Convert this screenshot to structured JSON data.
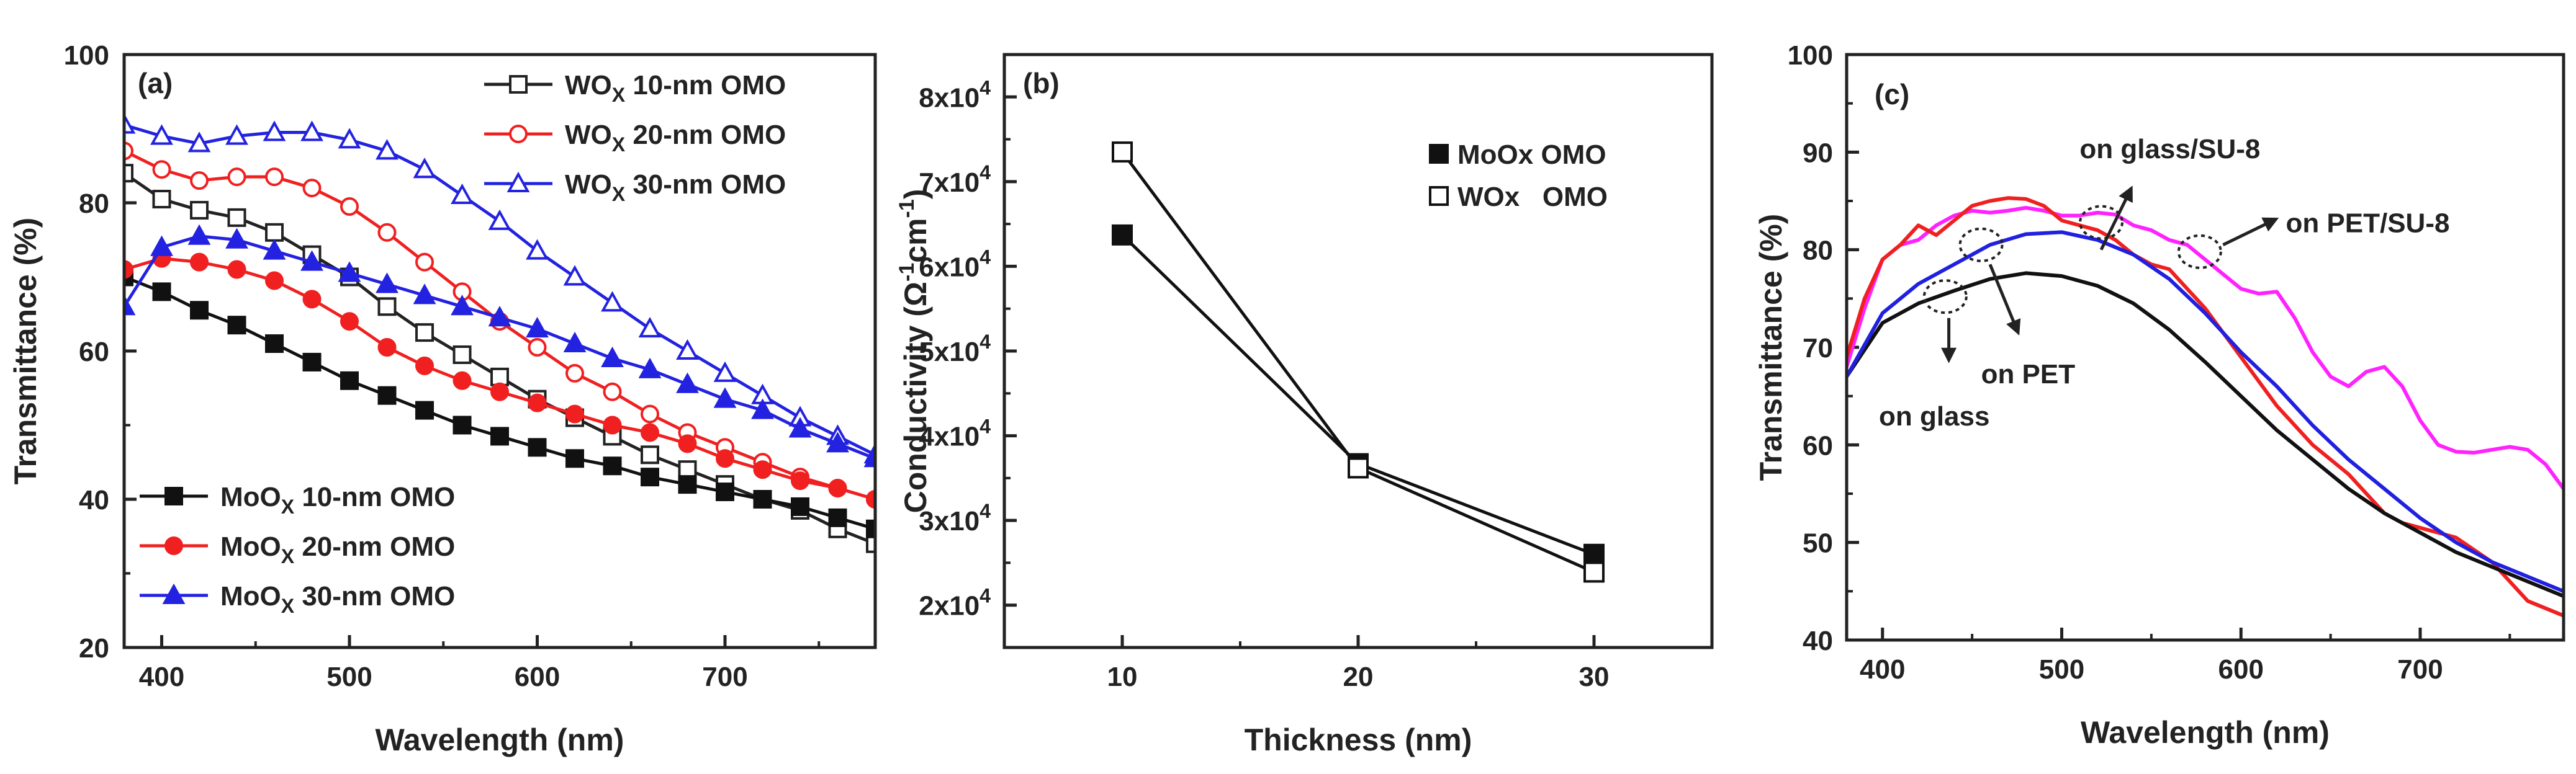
{
  "chart_data": [
    {
      "panel": "(a)",
      "type": "line",
      "xlabel": "Wavelength (nm)",
      "ylabel": "Transmittance (%)",
      "xlim": [
        380,
        780
      ],
      "ylim": [
        20,
        100
      ],
      "xticks": [
        "400",
        "500",
        "600",
        "700"
      ],
      "yticks": [
        "20",
        "40",
        "60",
        "80",
        "100"
      ],
      "legend_top": "top-right",
      "legend_bottom": "bottom-left",
      "series": [
        {
          "name": "WOx 10-nm OMO",
          "label_main": "WO",
          "label_sub": "X",
          "label_rest": " 10-nm OMO",
          "color": "#222222",
          "marker": "square",
          "filled": false,
          "legend": "top",
          "x": [
            380,
            400,
            420,
            440,
            460,
            480,
            500,
            520,
            540,
            560,
            580,
            600,
            620,
            640,
            660,
            680,
            700,
            720,
            740,
            760,
            780
          ],
          "y": [
            84,
            80.5,
            79,
            78,
            76,
            73,
            70,
            66,
            62.5,
            59.5,
            56.5,
            53.5,
            51,
            48.5,
            46,
            44,
            42,
            40,
            38.5,
            36,
            34
          ]
        },
        {
          "name": "WOx 20-nm OMO",
          "label_main": "WO",
          "label_sub": "X",
          "label_rest": " 20-nm OMO",
          "color": "#f02020",
          "marker": "circle",
          "filled": false,
          "legend": "top",
          "x": [
            380,
            400,
            420,
            440,
            460,
            480,
            500,
            520,
            540,
            560,
            580,
            600,
            620,
            640,
            660,
            680,
            700,
            720,
            740,
            760,
            780
          ],
          "y": [
            87,
            84.5,
            83,
            83.5,
            83.5,
            82,
            79.5,
            76,
            72,
            68,
            64,
            60.5,
            57,
            54.5,
            51.5,
            49,
            47,
            45,
            43,
            41.5,
            40
          ]
        },
        {
          "name": "WOx 30-nm OMO",
          "label_main": "WO",
          "label_sub": "X",
          "label_rest": " 30-nm OMO",
          "color": "#2222e0",
          "marker": "triangle",
          "filled": false,
          "legend": "top",
          "x": [
            380,
            400,
            420,
            440,
            460,
            480,
            500,
            520,
            540,
            560,
            580,
            600,
            620,
            640,
            660,
            680,
            700,
            720,
            740,
            760,
            780
          ],
          "y": [
            90.5,
            89,
            88,
            89,
            89.5,
            89.5,
            88.5,
            87,
            84.5,
            81,
            77.5,
            73.5,
            70,
            66.5,
            63,
            60,
            57,
            54,
            51,
            48.5,
            46
          ]
        },
        {
          "name": "MoOx 10-nm OMO",
          "label_main": "MoO",
          "label_sub": "X",
          "label_rest": " 10-nm OMO",
          "color": "#111111",
          "marker": "square",
          "filled": true,
          "legend": "bottom",
          "x": [
            380,
            400,
            420,
            440,
            460,
            480,
            500,
            520,
            540,
            560,
            580,
            600,
            620,
            640,
            660,
            680,
            700,
            720,
            740,
            760,
            780
          ],
          "y": [
            70,
            68,
            65.5,
            63.5,
            61,
            58.5,
            56,
            54,
            52,
            50,
            48.5,
            47,
            45.5,
            44.5,
            43,
            42,
            41,
            40,
            39,
            37.5,
            36
          ]
        },
        {
          "name": "MoOx 20-nm OMO",
          "label_main": "MoO",
          "label_sub": "X",
          "label_rest": " 20-nm OMO",
          "color": "#f02020",
          "marker": "circle",
          "filled": true,
          "legend": "bottom",
          "x": [
            380,
            400,
            420,
            440,
            460,
            480,
            500,
            520,
            540,
            560,
            580,
            600,
            620,
            640,
            660,
            680,
            700,
            720,
            740,
            760,
            780
          ],
          "y": [
            71,
            72.5,
            72,
            71,
            69.5,
            67,
            64,
            60.5,
            58,
            56,
            54.5,
            53,
            51.5,
            50,
            49,
            47.5,
            45.5,
            44,
            42.5,
            41.5,
            40
          ]
        },
        {
          "name": "MoOx 30-nm OMO",
          "label_main": "MoO",
          "label_sub": "X",
          "label_rest": " 30-nm OMO",
          "color": "#2222e0",
          "marker": "triangle",
          "filled": true,
          "legend": "bottom",
          "x": [
            380,
            400,
            420,
            440,
            460,
            480,
            500,
            520,
            540,
            560,
            580,
            600,
            620,
            640,
            660,
            680,
            700,
            720,
            740,
            760,
            780
          ],
          "y": [
            66,
            74,
            75.5,
            75,
            73.5,
            72,
            70.5,
            69,
            67.5,
            66,
            64.5,
            63,
            61,
            59,
            57.5,
            55.5,
            53.5,
            52,
            49.5,
            47.5,
            45.5
          ]
        }
      ]
    },
    {
      "panel": "(b)",
      "type": "line",
      "xlabel": "Thickness (nm)",
      "ylabel_main": "Conductivity (",
      "ylabel_omega": "Ω",
      "ylabel_exp1": "-1",
      "ylabel_cm": "cm",
      "ylabel_exp2": "-1",
      "ylabel_close": ")",
      "xlim": [
        5,
        35
      ],
      "ylim": [
        15000,
        85000
      ],
      "xticks": [
        "10",
        "20",
        "30"
      ],
      "ytick_base": "x10",
      "ytick_exponent": "4",
      "yticks": [
        "2",
        "3",
        "4",
        "5",
        "6",
        "7",
        "8"
      ],
      "legend": "top-right",
      "series": [
        {
          "name": "MoOx OMO",
          "color": "#111111",
          "marker": "square",
          "filled": true,
          "x": [
            10,
            20,
            30
          ],
          "y": [
            63700,
            36700,
            26000
          ]
        },
        {
          "name": "WOx   OMO",
          "color": "#111111",
          "marker": "square",
          "filled": false,
          "x": [
            10,
            20,
            30
          ],
          "y": [
            73500,
            36200,
            23900
          ]
        }
      ]
    },
    {
      "panel": "(c)",
      "type": "line",
      "xlabel": "Wavelength (nm)",
      "ylabel": "Transmittance (%)",
      "xlim": [
        380,
        780
      ],
      "ylim": [
        40,
        100
      ],
      "xticks": [
        "400",
        "500",
        "600",
        "700"
      ],
      "yticks": [
        "40",
        "50",
        "60",
        "70",
        "80",
        "90",
        "100"
      ],
      "annotations": [
        "on glass/SU-8",
        "on PET/SU-8",
        "on PET",
        "on glass"
      ],
      "series": [
        {
          "name": "on glass",
          "color": "#111111",
          "x": [
            380,
            400,
            420,
            440,
            460,
            480,
            500,
            520,
            540,
            560,
            580,
            600,
            620,
            640,
            660,
            680,
            700,
            720,
            740,
            760,
            780
          ],
          "y": [
            67,
            72.5,
            74.5,
            75.8,
            77,
            77.6,
            77.3,
            76.3,
            74.5,
            71.8,
            68.5,
            65,
            61.5,
            58.5,
            55.5,
            53,
            51,
            49,
            47.5,
            46,
            44.5
          ]
        },
        {
          "name": "on glass/SU-8",
          "color": "#f02020",
          "x": [
            380,
            390,
            400,
            410,
            420,
            430,
            440,
            450,
            460,
            470,
            480,
            490,
            500,
            510,
            520,
            530,
            540,
            550,
            560,
            570,
            580,
            600,
            620,
            640,
            660,
            680,
            690,
            700,
            720,
            740,
            760,
            780
          ],
          "y": [
            69,
            75,
            79,
            80.5,
            82.5,
            81.5,
            83,
            84.5,
            85,
            85.3,
            85.2,
            84.5,
            83,
            82.5,
            82,
            81,
            79.5,
            78.5,
            78,
            76,
            74,
            69,
            64,
            60,
            57,
            53,
            52,
            51.5,
            50.5,
            48,
            44,
            42.5
          ]
        },
        {
          "name": "on PET",
          "color": "#2020e0",
          "x": [
            380,
            400,
            420,
            440,
            460,
            480,
            500,
            520,
            540,
            560,
            580,
            600,
            620,
            640,
            660,
            680,
            700,
            720,
            740,
            760,
            780
          ],
          "y": [
            67,
            73.5,
            76.5,
            78.5,
            80.5,
            81.6,
            81.8,
            81,
            79.5,
            77,
            73.5,
            69.5,
            66,
            62,
            58.5,
            55.5,
            52.5,
            50,
            48,
            46.5,
            45
          ]
        },
        {
          "name": "on PET/SU-8",
          "color": "#ff22ff",
          "x": [
            380,
            390,
            400,
            410,
            420,
            430,
            440,
            450,
            460,
            470,
            480,
            490,
            500,
            510,
            520,
            530,
            540,
            550,
            560,
            570,
            580,
            590,
            600,
            610,
            620,
            630,
            640,
            650,
            660,
            670,
            680,
            690,
            700,
            710,
            720,
            730,
            740,
            750,
            760,
            770,
            780
          ],
          "y": [
            68,
            74,
            79,
            80.5,
            81,
            82.5,
            83.5,
            84,
            83.8,
            84,
            84.3,
            84,
            83.5,
            83.5,
            83.8,
            83.6,
            82.5,
            82,
            81,
            80.5,
            79,
            77.5,
            76,
            75.5,
            75.7,
            73,
            69.5,
            67,
            66,
            67.5,
            68,
            66,
            62.5,
            60,
            59.3,
            59.2,
            59.5,
            59.8,
            59.5,
            58,
            55.5
          ]
        }
      ]
    }
  ]
}
